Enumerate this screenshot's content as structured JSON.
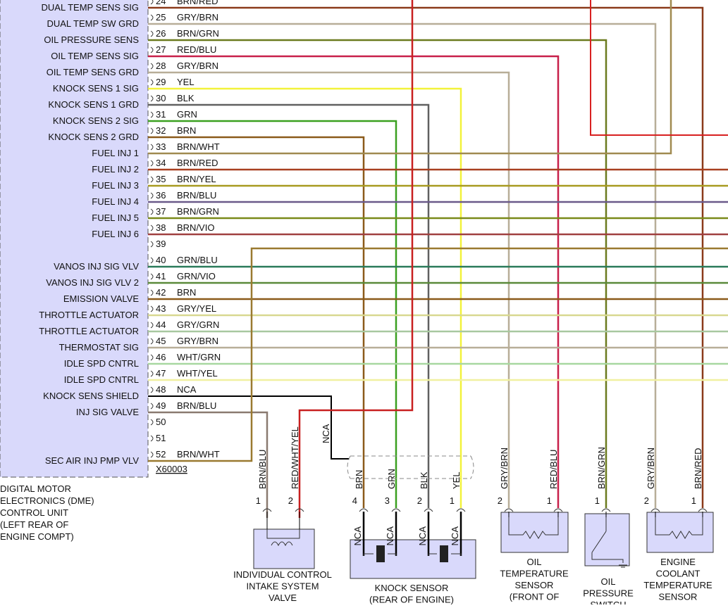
{
  "connector": {
    "id": "X60003",
    "module_lines": [
      "DIGITAL MOTOR",
      "ELECTRONICS (DME)",
      "CONTROL UNIT",
      "(LEFT REAR OF",
      "ENGINE COMPT)"
    ],
    "pins": [
      {
        "pin": "24",
        "label": "DUAL TEMP SENS SIG",
        "wire": "BRN/RED"
      },
      {
        "pin": "25",
        "label": "DUAL TEMP SW GRD",
        "wire": "GRY/BRN"
      },
      {
        "pin": "26",
        "label": "OIL PRESSURE SENS",
        "wire": "BRN/GRN"
      },
      {
        "pin": "27",
        "label": "OIL TEMP SENS SIG",
        "wire": "RED/BLU"
      },
      {
        "pin": "28",
        "label": "OIL TEMP SENS GRD",
        "wire": "GRY/BRN"
      },
      {
        "pin": "29",
        "label": "KNOCK SENS 1 SIG",
        "wire": "YEL"
      },
      {
        "pin": "30",
        "label": "KNOCK SENS 1 GRD",
        "wire": "BLK"
      },
      {
        "pin": "31",
        "label": "KNOCK SENS 2 SIG",
        "wire": "GRN"
      },
      {
        "pin": "32",
        "label": "KNOCK SENS 2 GRD",
        "wire": "BRN"
      },
      {
        "pin": "33",
        "label": "FUEL INJ 1",
        "wire": "BRN/WHT"
      },
      {
        "pin": "34",
        "label": "FUEL INJ 2",
        "wire": "BRN/RED"
      },
      {
        "pin": "35",
        "label": "FUEL INJ 3",
        "wire": "BRN/YEL"
      },
      {
        "pin": "36",
        "label": "FUEL INJ 4",
        "wire": "BRN/BLU"
      },
      {
        "pin": "37",
        "label": "FUEL INJ 5",
        "wire": "BRN/GRN"
      },
      {
        "pin": "38",
        "label": "FUEL INJ 6",
        "wire": "BRN/VIO"
      },
      {
        "pin": "39",
        "label": null,
        "wire": null
      },
      {
        "pin": "40",
        "label": "VANOS INJ SIG VLV",
        "wire": "GRN/BLU"
      },
      {
        "pin": "41",
        "label": "VANOS INJ SIG VLV 2",
        "wire": "GRN/VIO"
      },
      {
        "pin": "42",
        "label": "EMISSION VALVE",
        "wire": "BRN"
      },
      {
        "pin": "43",
        "label": "THROTTLE ACTUATOR",
        "wire": "GRY/YEL"
      },
      {
        "pin": "44",
        "label": "THROTTLE ACTUATOR",
        "wire": "GRY/GRN"
      },
      {
        "pin": "45",
        "label": "THERMOSTAT SIG",
        "wire": "GRY/BRN"
      },
      {
        "pin": "46",
        "label": "IDLE SPD CNTRL",
        "wire": "WHT/GRN"
      },
      {
        "pin": "47",
        "label": "IDLE SPD CNTRL",
        "wire": "WHT/YEL"
      },
      {
        "pin": "48",
        "label": "KNOCK SENS SHIELD",
        "wire": "NCA"
      },
      {
        "pin": "49",
        "label": "INJ SIG VALVE",
        "wire": "BRN/BLU"
      },
      {
        "pin": "50",
        "label": null,
        "wire": null
      },
      {
        "pin": "51",
        "label": null,
        "wire": null
      },
      {
        "pin": "52",
        "label": "SEC AIR INJ PMP VLV",
        "wire": "BRN/WHT"
      }
    ]
  },
  "components": [
    {
      "name_lines": [
        "INDIVIDUAL CONTROL",
        "INTAKE SYSTEM",
        "VALVE"
      ],
      "pins": [
        {
          "num": "1",
          "wire": "BRN/BLU"
        },
        {
          "num": "2",
          "wire": "RED/WHT/YEL"
        }
      ]
    },
    {
      "name_lines": [
        "KNOCK SENSOR",
        "(REAR OF ENGINE)"
      ],
      "shield": "NCA",
      "pins": [
        {
          "num": "4",
          "wire": "BRN",
          "lower": "NCA"
        },
        {
          "num": "3",
          "wire": "GRN",
          "lower": "NCA"
        },
        {
          "num": "2",
          "wire": "BLK",
          "lower": "NCA"
        },
        {
          "num": "1",
          "wire": "YEL",
          "lower": "NCA"
        }
      ]
    },
    {
      "name_lines": [
        "OIL",
        "TEMPERATURE",
        "SENSOR",
        "(FRONT OF"
      ],
      "pins": [
        {
          "num": "2",
          "wire": "GRY/BRN"
        },
        {
          "num": "1",
          "wire": "RED/BLU"
        }
      ]
    },
    {
      "name_lines": [
        "OIL",
        "PRESSURE",
        "SWITCH"
      ],
      "pins": [
        {
          "num": "1",
          "wire": "BRN/GRN"
        }
      ]
    },
    {
      "name_lines": [
        "ENGINE",
        "COOLANT",
        "TEMPERATURE",
        "SENSOR"
      ],
      "pins": [
        {
          "num": "2",
          "wire": "GRY/BRN"
        },
        {
          "num": "1",
          "wire": "BRN/RED"
        }
      ]
    }
  ]
}
